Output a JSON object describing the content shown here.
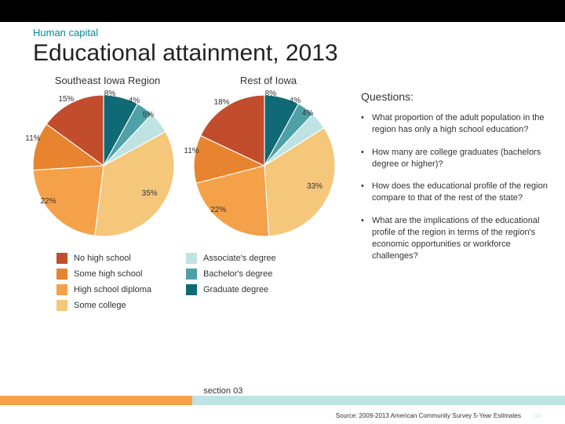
{
  "kicker": "Human capital",
  "title": "Educational attainment, 2013",
  "charts": {
    "colors": {
      "no_high_school": "#c24d2c",
      "some_high_school": "#e8842f",
      "high_school_diploma": "#f5a14a",
      "some_college": "#f4c77b",
      "associates": "#bfe3e3",
      "bachelors": "#4fa1a8",
      "graduate": "#0f6a75"
    },
    "pie1": {
      "title": "Southeast Iowa Region",
      "slices": [
        {
          "label": "8%",
          "value": 8,
          "key": "graduate"
        },
        {
          "label": "4%",
          "value": 4,
          "key": "bachelors"
        },
        {
          "label": "5%",
          "value": 5,
          "key": "associates"
        },
        {
          "label": "35%",
          "value": 35,
          "key": "some_college"
        },
        {
          "label": "22%",
          "value": 22,
          "key": "high_school_diploma"
        },
        {
          "label": "11%",
          "value": 11,
          "key": "some_high_school"
        },
        {
          "label": "15%",
          "value": 15,
          "key": "no_high_school"
        }
      ]
    },
    "pie2": {
      "title": "Rest of Iowa",
      "slices": [
        {
          "label": "8%",
          "value": 8,
          "key": "graduate"
        },
        {
          "label": "4%",
          "value": 4,
          "key": "bachelors"
        },
        {
          "label": "4%",
          "value": 4,
          "key": "associates"
        },
        {
          "label": "33%",
          "value": 33,
          "key": "some_college"
        },
        {
          "label": "22%",
          "value": 22,
          "key": "high_school_diploma"
        },
        {
          "label": "11%",
          "value": 11,
          "key": "some_high_school"
        },
        {
          "label": "18%",
          "value": 18,
          "key": "no_high_school"
        }
      ]
    },
    "legend": [
      {
        "key": "no_high_school",
        "label": "No high school"
      },
      {
        "key": "some_high_school",
        "label": "Some high school"
      },
      {
        "key": "high_school_diploma",
        "label": "High school diploma"
      },
      {
        "key": "some_college",
        "label": "Some college"
      },
      {
        "key": "associates",
        "label": "Associate's degree"
      },
      {
        "key": "bachelors",
        "label": "Bachelor's degree"
      },
      {
        "key": "graduate",
        "label": "Graduate degree"
      }
    ]
  },
  "questions": {
    "heading": "Questions:",
    "items": [
      "What proportion of the adult population in the region has only a high school education?",
      "How many are college graduates (bachelors degree or higher)?",
      "How does the educational profile of the region compare to that of the rest of the state?",
      "What are the implications of the educational profile of the region in terms of the region's economic opportunities or workforce challenges?"
    ]
  },
  "footer": {
    "section_label": "section 03",
    "source": "Source: 2009-2013 American Community Survey 5-Year Estimates",
    "page": "33"
  }
}
